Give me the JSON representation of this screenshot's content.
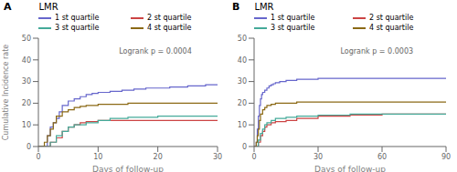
{
  "chart_data": [
    {
      "type": "line",
      "title": "LMR",
      "annotations": [
        "A",
        "Logrank p = 0.0004"
      ],
      "xlabel": "Days of follow-up",
      "ylabel": "Cumulative Incidence rate",
      "xlim": [
        0,
        30
      ],
      "xticks": [
        0,
        10,
        20,
        30
      ],
      "ylim": [
        0,
        50
      ],
      "yticks": [
        0,
        10,
        20,
        30,
        40,
        50
      ],
      "grid": false,
      "legend": "top",
      "series": [
        {
          "name": "1 st quartile",
          "color": "#6666cc",
          "line_style": "step",
          "x": [
            0,
            1,
            1.5,
            2,
            2.5,
            3,
            3.5,
            4,
            5,
            6,
            7,
            8,
            9,
            10,
            12,
            14,
            16,
            18,
            20,
            22,
            25,
            28,
            30
          ],
          "values": [
            0,
            0,
            5,
            9,
            11,
            13,
            16,
            19,
            21,
            22,
            23,
            24,
            24.5,
            25,
            25.5,
            26,
            26.5,
            27,
            27,
            27.5,
            28,
            28.5,
            28.5
          ]
        },
        {
          "name": "2 st quartile",
          "color": "#cc4444",
          "line_style": "step",
          "x": [
            0,
            1,
            2,
            3,
            4,
            5,
            6,
            7,
            8,
            10,
            12,
            15,
            20,
            25,
            30
          ],
          "values": [
            0,
            0,
            2,
            4,
            7,
            9,
            10,
            11,
            11.5,
            12,
            12,
            12,
            12,
            12,
            12
          ]
        },
        {
          "name": "3 st quartile",
          "color": "#44aa99",
          "line_style": "step",
          "x": [
            0,
            1,
            2,
            3,
            4,
            5,
            6,
            8,
            10,
            12,
            15,
            20,
            25,
            30
          ],
          "values": [
            0,
            0,
            2,
            5,
            7,
            9,
            10,
            11,
            12,
            13,
            13.5,
            14,
            14,
            14
          ]
        },
        {
          "name": "4 st quartile",
          "color": "#8B6914",
          "line_style": "step",
          "x": [
            0,
            1,
            1.5,
            2,
            2.5,
            3,
            4,
            5,
            6,
            7,
            8,
            10,
            12,
            15,
            20,
            25,
            30
          ],
          "values": [
            0,
            2,
            5,
            8,
            11,
            14,
            16,
            17,
            18,
            18.5,
            19,
            19.5,
            19.5,
            20,
            20,
            20,
            20
          ]
        }
      ]
    },
    {
      "type": "line",
      "title": "LMR",
      "annotations": [
        "B",
        "Logrank p = 0.0003"
      ],
      "xlabel": "Days of follow-up",
      "xlim": [
        0,
        90
      ],
      "xticks": [
        0,
        30,
        60,
        90
      ],
      "ylim": [
        0,
        50
      ],
      "yticks": [
        0,
        10,
        20,
        30,
        40,
        50
      ],
      "grid": false,
      "legend": "top",
      "series": [
        {
          "name": "1 st quartile",
          "color": "#6666cc",
          "line_style": "step",
          "x": [
            0,
            1,
            1.5,
            2,
            2.5,
            3,
            3.5,
            4,
            5,
            6,
            7,
            8,
            9,
            10,
            12,
            15,
            20,
            25,
            30,
            40,
            50,
            60,
            75,
            90
          ],
          "values": [
            0,
            2,
            8,
            14,
            19,
            22,
            24,
            25,
            26,
            27,
            28,
            28.5,
            29,
            29.5,
            30,
            30.5,
            31,
            31,
            31.5,
            31.5,
            31.5,
            31.5,
            31.5,
            31.5
          ]
        },
        {
          "name": "2 st quartile",
          "color": "#cc4444",
          "line_style": "step",
          "x": [
            0,
            1,
            2,
            3,
            4,
            5,
            6,
            8,
            10,
            15,
            20,
            30,
            45,
            60,
            75,
            90
          ],
          "values": [
            0,
            0,
            2,
            5,
            7,
            9,
            10,
            11,
            11.5,
            12,
            13,
            14,
            14.5,
            15,
            15,
            15
          ]
        },
        {
          "name": "3 st quartile",
          "color": "#44aa99",
          "line_style": "step",
          "x": [
            0,
            1,
            2,
            3,
            4,
            5,
            6,
            8,
            10,
            15,
            20,
            30,
            45,
            60,
            75,
            90
          ],
          "values": [
            0,
            0,
            3,
            6,
            8,
            10,
            11,
            12,
            13,
            13.5,
            14,
            14.5,
            15,
            15,
            15,
            15
          ]
        },
        {
          "name": "4 st quartile",
          "color": "#8B6914",
          "line_style": "step",
          "x": [
            0,
            1,
            1.5,
            2,
            2.5,
            3,
            4,
            5,
            6,
            8,
            10,
            15,
            20,
            30,
            45,
            60,
            75,
            90
          ],
          "values": [
            0,
            2,
            5,
            8,
            12,
            15,
            17,
            18,
            19,
            19.5,
            20,
            20,
            20.5,
            20.5,
            20.5,
            20.5,
            20.5,
            20.5
          ]
        }
      ]
    }
  ]
}
